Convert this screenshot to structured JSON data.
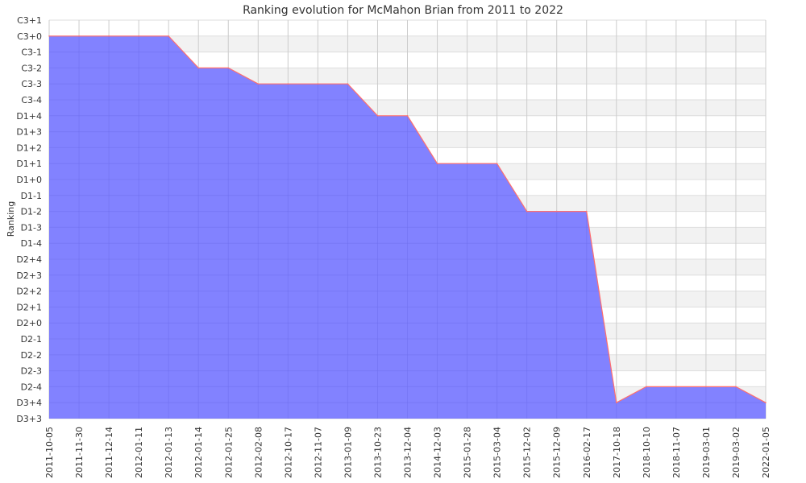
{
  "chart_data": {
    "type": "area",
    "title": "Ranking evolution for McMahon Brian from 2011 to 2022",
    "xlabel": "",
    "ylabel": "Ranking",
    "y_ticks": [
      "D3+3",
      "D3+4",
      "D2-4",
      "D2-3",
      "D2-2",
      "D2-1",
      "D2+0",
      "D2+1",
      "D2+2",
      "D2+3",
      "D2+4",
      "D1-4",
      "D1-3",
      "D1-2",
      "D1-1",
      "D1+0",
      "D1+1",
      "D1+2",
      "D1+3",
      "D1+4",
      "C3-4",
      "C3-3",
      "C3-2",
      "C3-1",
      "C3+0",
      "C3+1"
    ],
    "x": [
      "2011-10-05",
      "2011-11-30",
      "2011-12-14",
      "2012-01-11",
      "2012-01-13",
      "2012-01-14",
      "2012-01-25",
      "2012-02-08",
      "2012-10-17",
      "2012-11-07",
      "2013-01-09",
      "2013-10-23",
      "2013-12-04",
      "2014-12-03",
      "2015-01-28",
      "2015-03-04",
      "2015-12-02",
      "2015-12-09",
      "2016-02-17",
      "2017-10-18",
      "2018-10-10",
      "2018-11-07",
      "2019-03-01",
      "2019-03-02",
      "2022-01-05"
    ],
    "series": [
      {
        "values": [
          "C3+0",
          "C3+0",
          "C3+0",
          "C3+0",
          "C3+0",
          "C3-2",
          "C3-2",
          "C3-3",
          "C3-3",
          "C3-3",
          "C3-3",
          "D1+4",
          "D1+4",
          "D1+1",
          "D1+1",
          "D1+1",
          "D1-2",
          "D1-2",
          "D1-2",
          "D3+4",
          "D2-4",
          "D2-4",
          "D2-4",
          "D2-4",
          "D3+4"
        ],
        "color": "#7b7bff",
        "line_color": "#ff6f6f"
      }
    ],
    "grid": true,
    "legend": "none"
  }
}
